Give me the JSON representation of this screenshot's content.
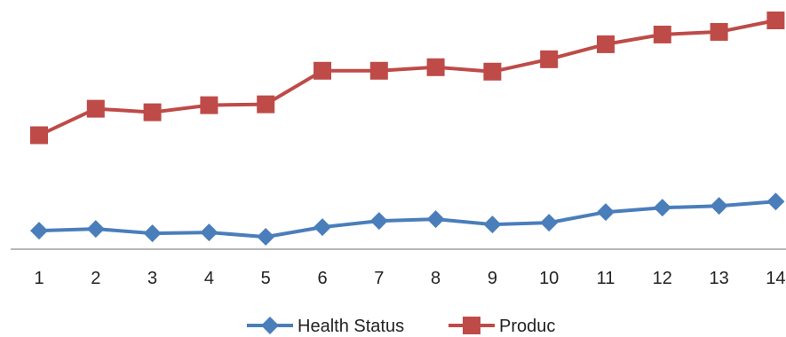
{
  "chart_data": {
    "type": "line",
    "categories": [
      "1",
      "2",
      "3",
      "4",
      "5",
      "6",
      "7",
      "8",
      "9",
      "10",
      "11",
      "12",
      "13",
      "14"
    ],
    "series": [
      {
        "name": "Health Status",
        "color": "#4a7ebb",
        "marker": "diamond",
        "values": [
          21,
          23,
          18,
          19,
          14,
          25,
          32,
          34,
          28,
          30,
          42,
          47,
          49,
          54
        ]
      },
      {
        "name": "Produc",
        "color": "#be4b48",
        "marker": "square",
        "values": [
          129,
          159,
          155,
          163,
          164,
          202,
          202,
          206,
          201,
          215,
          232,
          243,
          246,
          259
        ]
      }
    ],
    "title": "",
    "xlabel": "",
    "ylabel": "",
    "ylim": [
      0,
      262
    ],
    "grid": false,
    "legend": "bottom"
  }
}
